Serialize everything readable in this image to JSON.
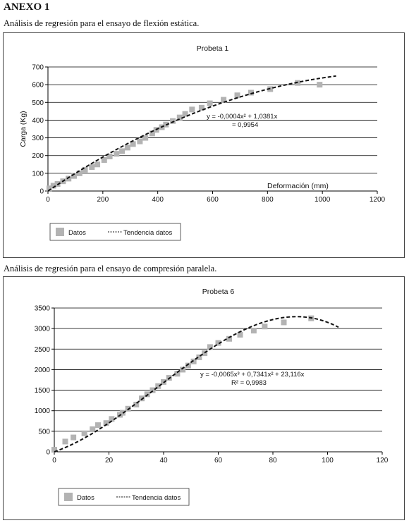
{
  "header": {
    "title": "ANEXO 1",
    "caption1": "Análisis de regresión para el ensayo de flexión estática.",
    "caption2": "Análisis de regresión para el ensayo de compresión paralela."
  },
  "colors": {
    "marker": "#b3b3b3",
    "trend": "#111111",
    "grid": "#000000"
  },
  "chart_data": [
    {
      "type": "scatter",
      "title": "Probeta 1",
      "xlabel": "Deformación (mm)",
      "ylabel": "Carga (Kg)",
      "xlim": [
        0,
        1200
      ],
      "ylim": [
        0,
        700
      ],
      "xticks": [
        0,
        200,
        400,
        600,
        800,
        1000,
        1200
      ],
      "yticks": [
        0,
        100,
        200,
        300,
        400,
        500,
        600,
        700
      ],
      "grid": true,
      "legend_position": "bottom-left",
      "series": [
        {
          "name": "Datos",
          "marker": "square",
          "points": [
            [
              5,
              15
            ],
            [
              20,
              30
            ],
            [
              35,
              40
            ],
            [
              55,
              55
            ],
            [
              75,
              70
            ],
            [
              95,
              85
            ],
            [
              115,
              100
            ],
            [
              135,
              120
            ],
            [
              160,
              135
            ],
            [
              180,
              150
            ],
            [
              205,
              175
            ],
            [
              225,
              195
            ],
            [
              250,
              210
            ],
            [
              270,
              225
            ],
            [
              290,
              245
            ],
            [
              310,
              265
            ],
            [
              335,
              280
            ],
            [
              355,
              300
            ],
            [
              380,
              325
            ],
            [
              395,
              345
            ],
            [
              415,
              360
            ],
            [
              430,
              375
            ],
            [
              455,
              395
            ],
            [
              480,
              415
            ],
            [
              500,
              435
            ],
            [
              525,
              460
            ],
            [
              560,
              470
            ],
            [
              590,
              495
            ],
            [
              640,
              515
            ],
            [
              690,
              540
            ],
            [
              740,
              555
            ],
            [
              810,
              575
            ],
            [
              910,
              610
            ],
            [
              990,
              600
            ]
          ]
        },
        {
          "name": "Tendencia datos",
          "style": "dashed",
          "curve": {
            "a2": -0.0004,
            "a1": 1.0381,
            "a0": 0,
            "x_range": [
              0,
              1050
            ]
          }
        }
      ],
      "equation": "y = -0,0004x² + 1,0381x",
      "r2_label": "= 0,9954"
    },
    {
      "type": "scatter",
      "title": "Probeta 6",
      "xlabel": "",
      "ylabel": "",
      "xlim": [
        0,
        120
      ],
      "ylim": [
        0,
        3500
      ],
      "xticks": [
        0,
        20,
        40,
        60,
        80,
        100,
        120
      ],
      "yticks": [
        0,
        500,
        1000,
        1500,
        2000,
        2500,
        3000,
        3500
      ],
      "grid": true,
      "legend_position": "bottom-left",
      "series": [
        {
          "name": "Datos",
          "marker": "square",
          "points": [
            [
              0,
              50
            ],
            [
              4,
              250
            ],
            [
              7,
              350
            ],
            [
              11,
              450
            ],
            [
              14,
              550
            ],
            [
              16,
              650
            ],
            [
              19,
              700
            ],
            [
              21,
              800
            ],
            [
              24,
              900
            ],
            [
              25,
              950
            ],
            [
              27,
              1050
            ],
            [
              30,
              1150
            ],
            [
              32,
              1300
            ],
            [
              34,
              1400
            ],
            [
              36,
              1500
            ],
            [
              38,
              1600
            ],
            [
              40,
              1700
            ],
            [
              42,
              1800
            ],
            [
              45,
              1900
            ],
            [
              47,
              2000
            ],
            [
              49,
              2100
            ],
            [
              51,
              2200
            ],
            [
              53,
              2300
            ],
            [
              55,
              2400
            ],
            [
              57,
              2550
            ],
            [
              60,
              2650
            ],
            [
              64,
              2750
            ],
            [
              68,
              2850
            ],
            [
              73,
              2950
            ],
            [
              77,
              3050
            ],
            [
              84,
              3150
            ],
            [
              94,
              3250
            ]
          ]
        },
        {
          "name": "Tendencia datos",
          "style": "dashed",
          "curve": {
            "a3": -0.0065,
            "a2": 0.7341,
            "a1": 23.116,
            "x_range": [
              0,
              104
            ]
          }
        }
      ],
      "equation": "y = -0,0065x³ + 0,7341x² + 23,116x",
      "r2_label": "R² = 0,9983"
    }
  ]
}
